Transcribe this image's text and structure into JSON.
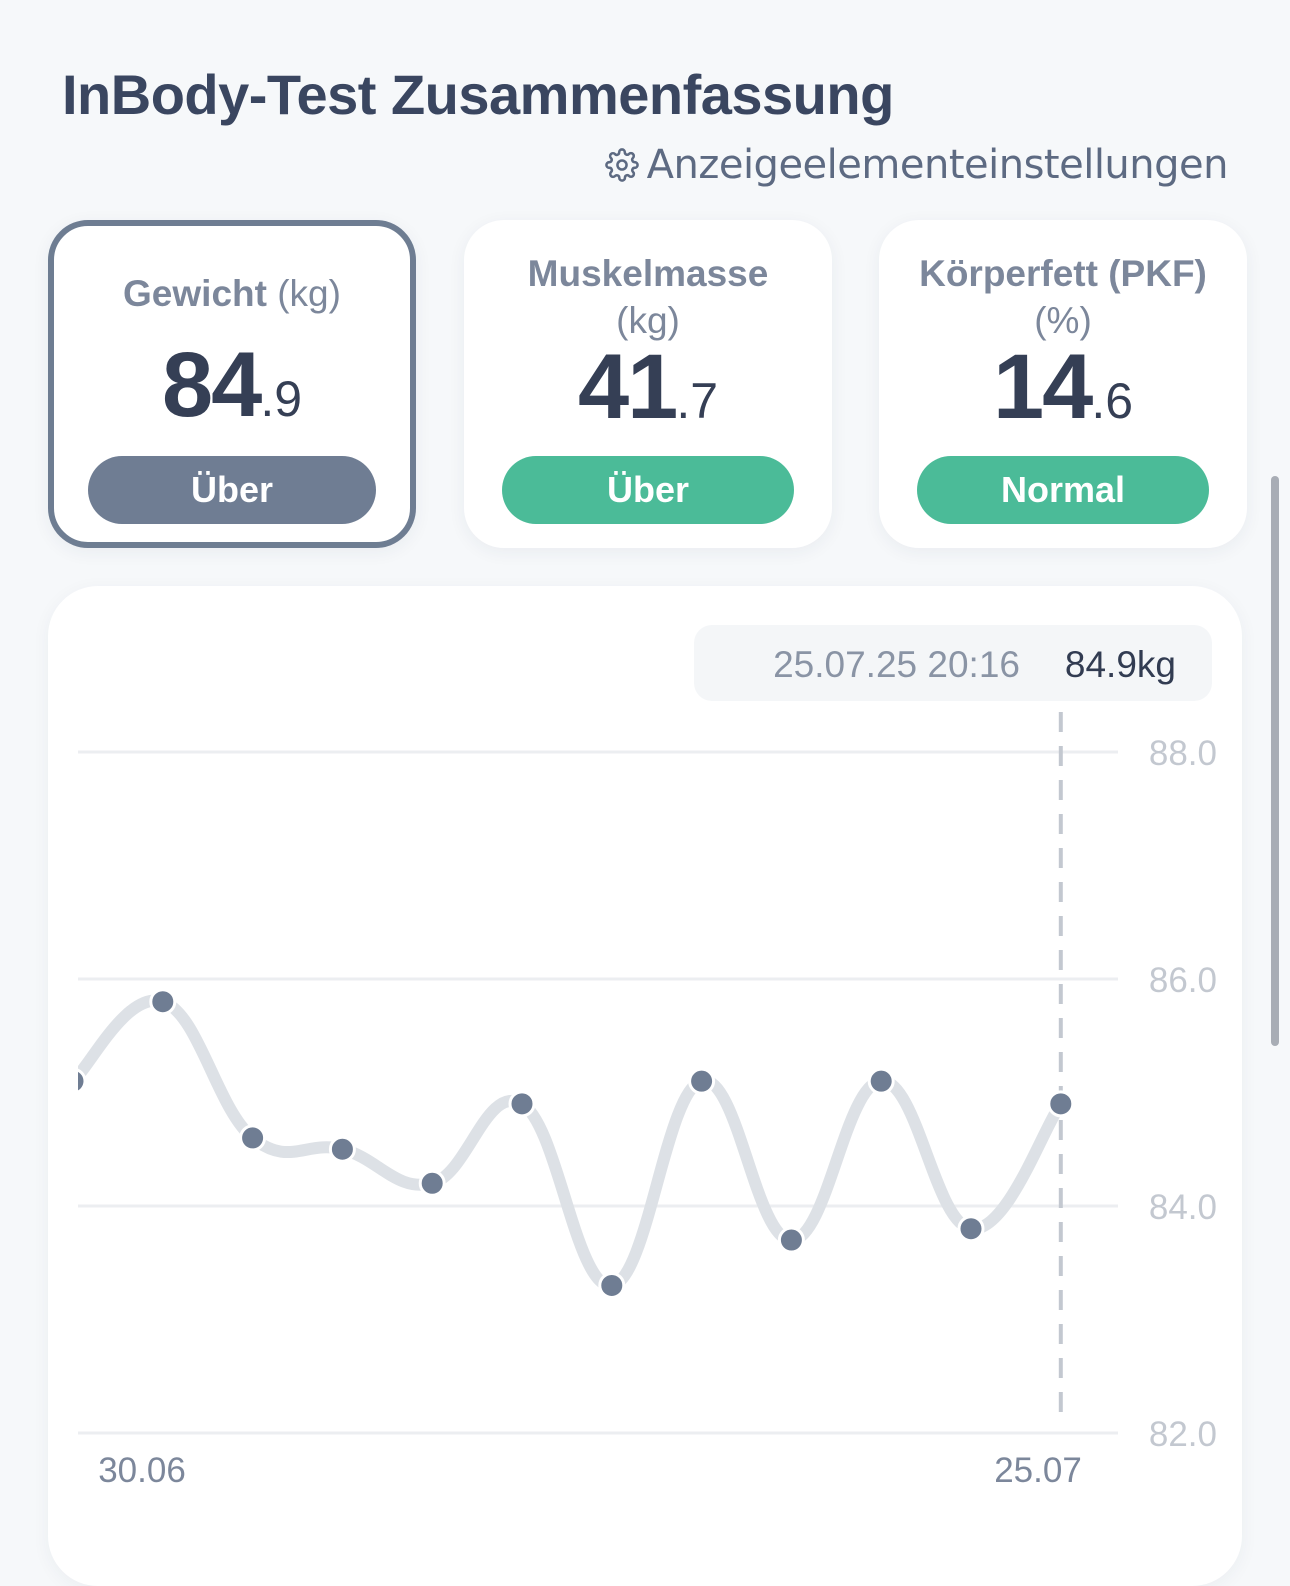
{
  "header": {
    "title": "InBody-Test Zusammenfassung",
    "settings_label": "Anzeigeelementeinstellungen",
    "settings_icon": "gear-icon"
  },
  "cards": [
    {
      "name": "Gewicht",
      "unit": "(kg)",
      "value_int": "84",
      "value_dec": ".9",
      "status": "Über",
      "status_color": "#6f7d93",
      "selected": true
    },
    {
      "name": "Muskelmasse",
      "unit": "(kg)",
      "value_int": "41",
      "value_dec": ".7",
      "status": "Über",
      "status_color": "#4bbb98",
      "selected": false
    },
    {
      "name": "Körperfett (PKF)",
      "unit": "(%)",
      "value_int": "14",
      "value_dec": ".6",
      "status": "Normal",
      "status_color": "#4bbb98",
      "selected": false
    }
  ],
  "tooltip": {
    "datetime": "25.07.25 20:16",
    "value": "84.9kg"
  },
  "chart_data": {
    "type": "line",
    "title": "",
    "xlabel": "",
    "ylabel": "",
    "ylim": [
      82.0,
      88.0
    ],
    "yticks": [
      "88.0",
      "86.0",
      "84.0",
      "82.0"
    ],
    "xtick_labels": [
      "30.06",
      "25.07"
    ],
    "grid": true,
    "line_color": "#dde1e6",
    "point_color": "#6f7d93",
    "series": [
      {
        "values": [
          85.1,
          85.8,
          84.6,
          84.5,
          84.2,
          84.9,
          83.3,
          85.1,
          83.7,
          85.1,
          83.8,
          84.9
        ]
      }
    ]
  }
}
